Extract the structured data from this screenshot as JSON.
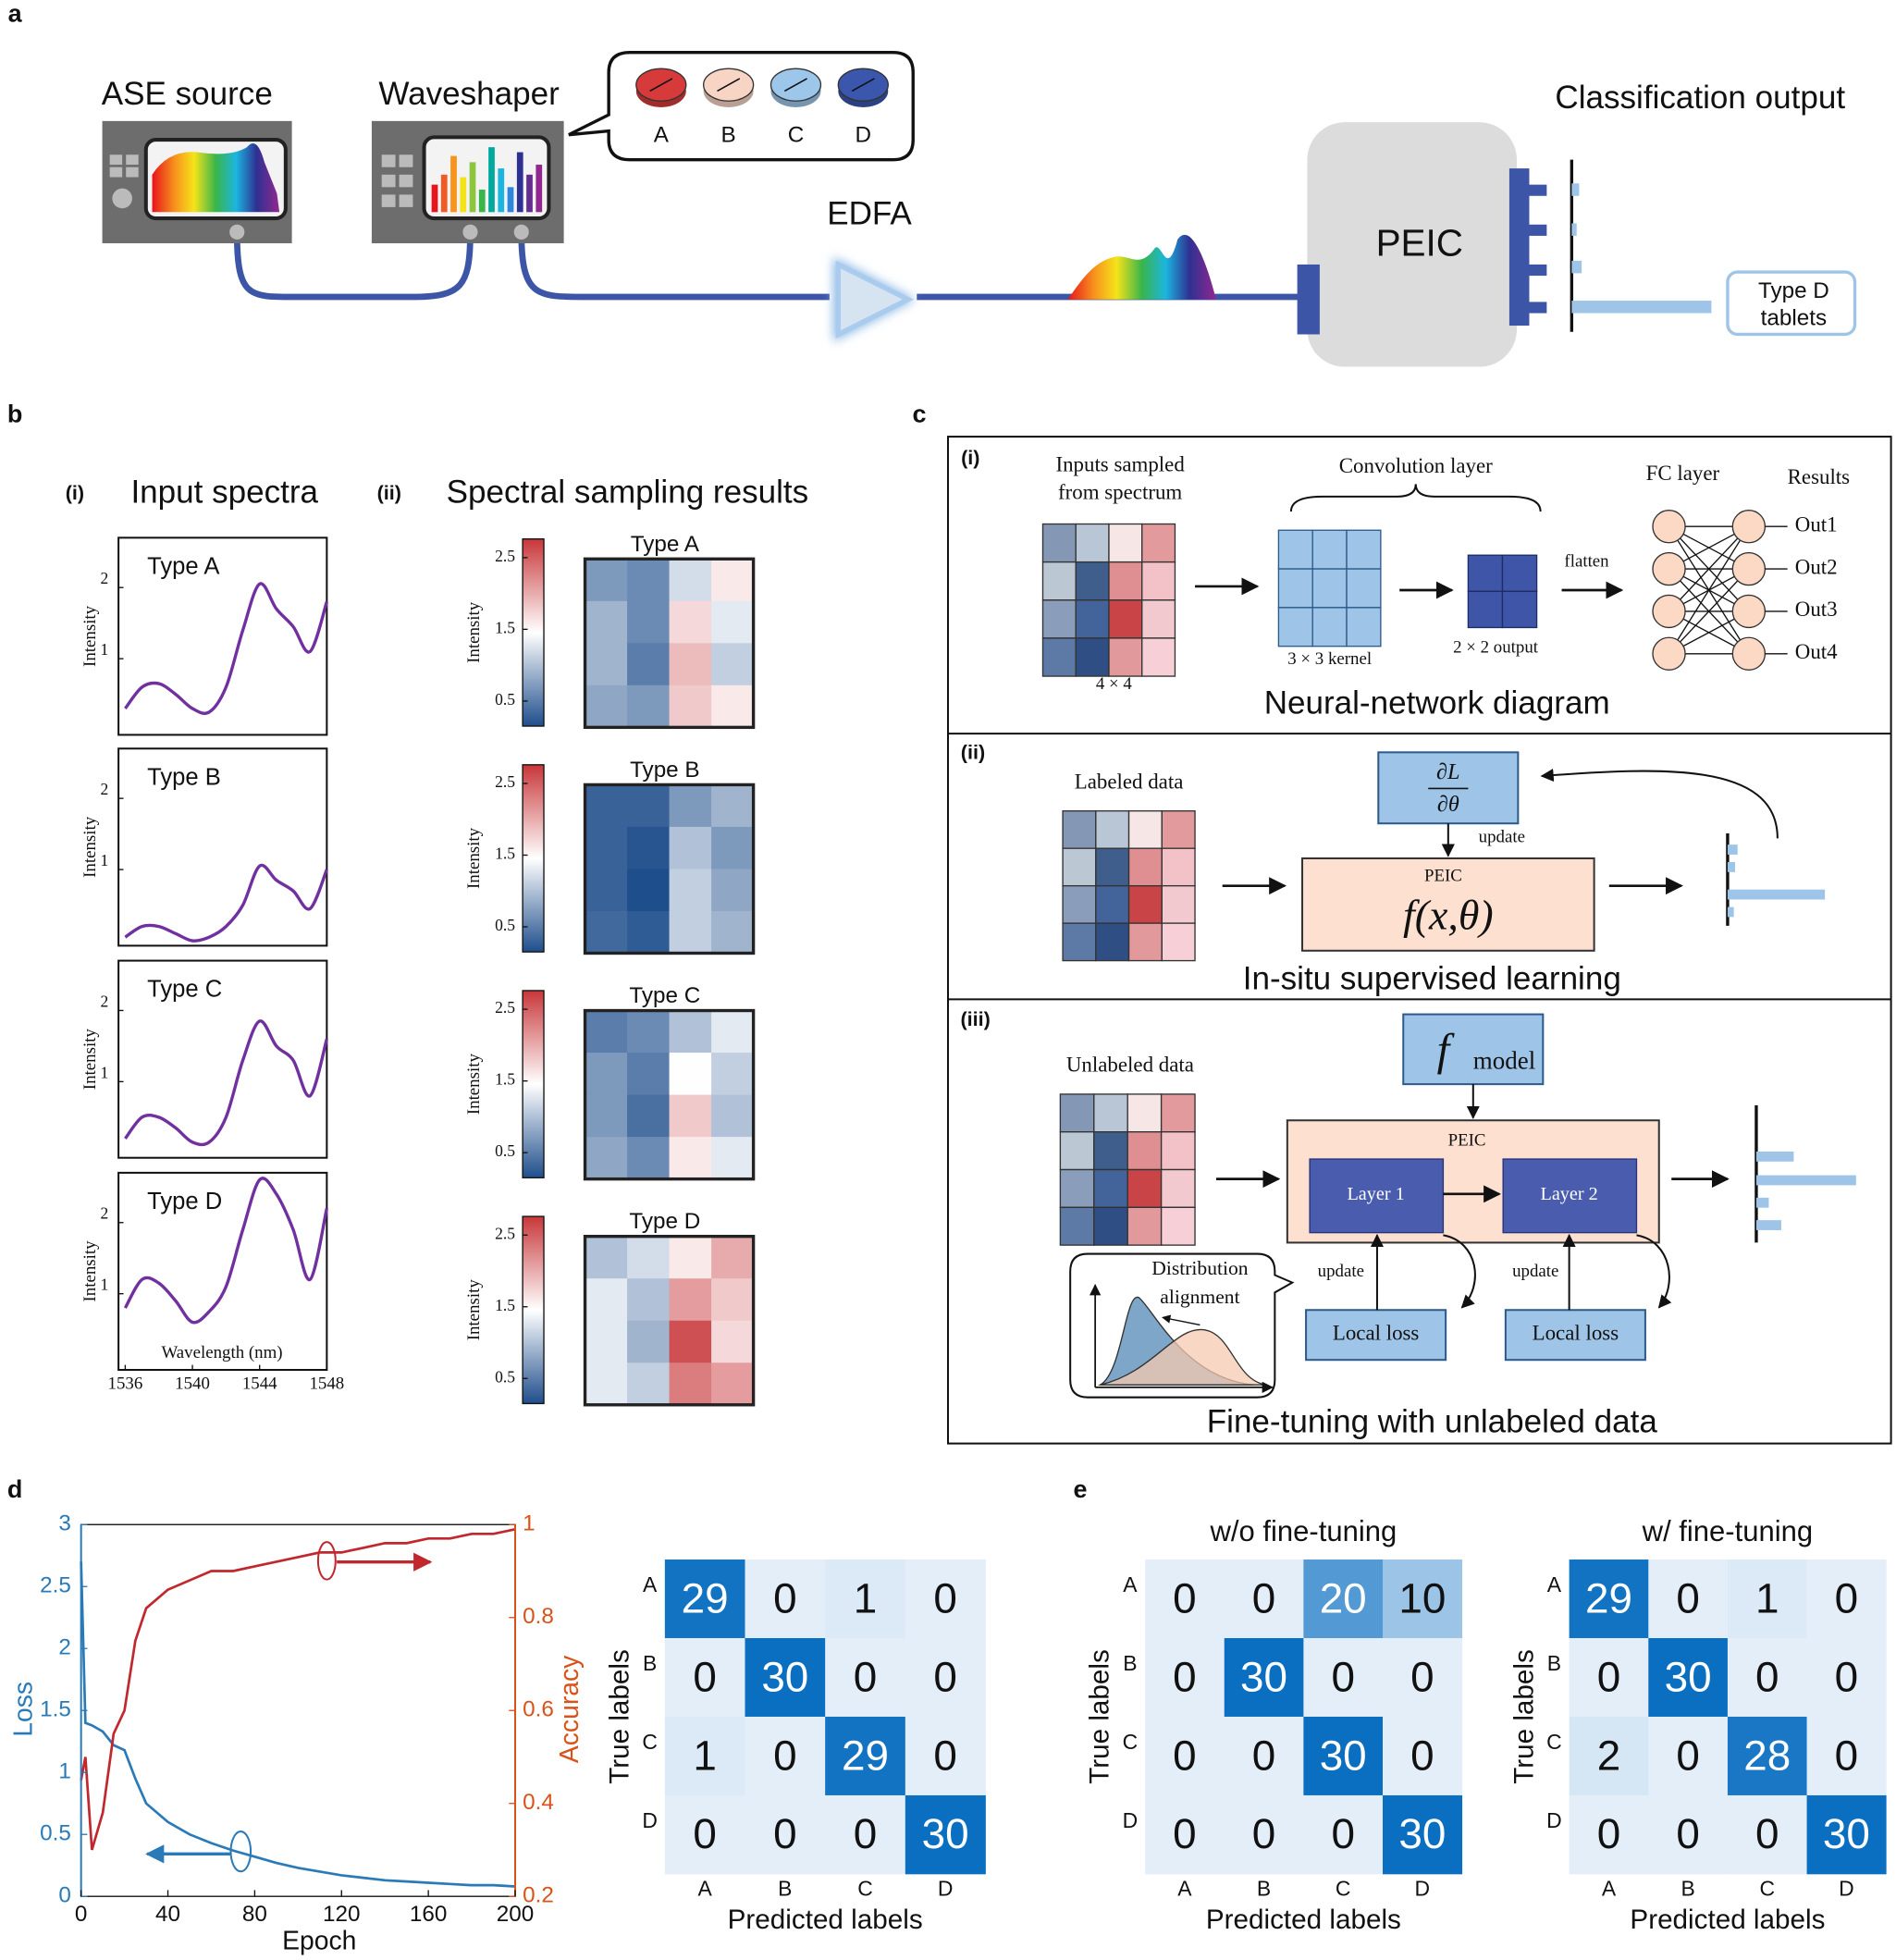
{
  "panel_a": {
    "label": "a",
    "source": "ASE source",
    "shaper": "Waveshaper",
    "tablets": [
      "A",
      "B",
      "C",
      "D"
    ],
    "amplifier": "EDFA",
    "chip": "PEIC",
    "output_title": "Classification output",
    "output": [
      "Type D",
      "tablets"
    ]
  },
  "panel_b": {
    "label": "b",
    "sub_i": "(i)",
    "title_i": "Input spectra",
    "sub_ii": "(ii)",
    "title_ii": "Spectral sampling results",
    "spectra": {
      "type": "line",
      "x": [
        1536,
        1537,
        1538,
        1539,
        1540,
        1541,
        1542,
        1543,
        1544,
        1545,
        1546,
        1547,
        1548
      ],
      "xlim": [
        1535.6,
        1548
      ],
      "xticks": [
        1536,
        1540,
        1544,
        1548
      ],
      "ylim": [
        -0.07,
        2.7
      ],
      "yticks": [
        1,
        2
      ],
      "x_label": "Wavelength (nm)",
      "y_label": "Intensity",
      "color": "#7030a0",
      "series": [
        {
          "name": "Type A",
          "values": [
            0.3,
            0.6,
            0.65,
            0.5,
            0.3,
            0.25,
            0.6,
            1.4,
            2.05,
            1.7,
            1.45,
            1.1,
            1.8
          ]
        },
        {
          "name": "Type B",
          "values": [
            0.05,
            0.2,
            0.2,
            0.1,
            0.0,
            0.05,
            0.2,
            0.5,
            1.05,
            0.85,
            0.7,
            0.45,
            1.0
          ]
        },
        {
          "name": "Type C",
          "values": [
            0.2,
            0.5,
            0.5,
            0.35,
            0.15,
            0.15,
            0.5,
            1.3,
            1.85,
            1.5,
            1.3,
            0.8,
            1.6
          ]
        },
        {
          "name": "Type D",
          "values": [
            0.8,
            1.2,
            1.15,
            0.9,
            0.6,
            0.75,
            1.1,
            1.9,
            2.6,
            2.4,
            1.9,
            1.2,
            2.2
          ]
        }
      ]
    },
    "heatmaps": {
      "type": "heatmap",
      "clim": [
        0.15,
        2.76
      ],
      "cticks": [
        0.5,
        1.5,
        2.5
      ],
      "c_label": "Intensity",
      "maps": [
        {
          "name": "Type A",
          "values": [
            [
              0.7,
              0.6,
              1.2,
              1.6
            ],
            [
              0.9,
              0.6,
              1.7,
              1.3
            ],
            [
              0.9,
              0.5,
              1.9,
              1.1
            ],
            [
              0.8,
              0.7,
              1.8,
              1.6
            ]
          ]
        },
        {
          "name": "Type B",
          "values": [
            [
              0.3,
              0.3,
              0.7,
              0.9
            ],
            [
              0.3,
              0.2,
              1.0,
              0.7
            ],
            [
              0.3,
              0.15,
              1.1,
              0.8
            ],
            [
              0.35,
              0.25,
              1.1,
              0.9
            ]
          ]
        },
        {
          "name": "Type C",
          "values": [
            [
              0.5,
              0.6,
              1.0,
              1.3
            ],
            [
              0.7,
              0.5,
              1.45,
              1.1
            ],
            [
              0.7,
              0.4,
              1.8,
              1.0
            ],
            [
              0.8,
              0.6,
              1.6,
              1.3
            ]
          ]
        },
        {
          "name": "Type D",
          "values": [
            [
              1.0,
              1.2,
              1.6,
              2.0
            ],
            [
              1.3,
              1.0,
              2.1,
              1.8
            ],
            [
              1.3,
              0.9,
              2.6,
              1.7
            ],
            [
              1.3,
              1.1,
              2.3,
              2.1
            ]
          ]
        }
      ]
    }
  },
  "panel_c": {
    "label": "c",
    "nn": {
      "tag": "(i)",
      "inputs": [
        "Inputs sampled",
        "from spectrum"
      ],
      "input_size": "4 × 4",
      "conv": "Convolution layer",
      "kernel": "3 × 3 kernel",
      "output": "2 × 2 output",
      "flatten": "flatten",
      "fc": "FC layer",
      "results": "Results",
      "outs": [
        "Out1",
        "Out2",
        "Out3",
        "Out4"
      ],
      "caption": "Neural-network diagram"
    },
    "supervised": {
      "tag": "(ii)",
      "input": "Labeled data",
      "gradient": {
        "num": "∂L",
        "den": "∂θ"
      },
      "update": "update",
      "chip": "PEIC",
      "function": "f(x,θ)",
      "caption": "In-situ supervised learning"
    },
    "finetune": {
      "tag": "(iii)",
      "input": "Unlabeled data",
      "model": {
        "f": "f",
        "sub": "model"
      },
      "chip": "PEIC",
      "layers": [
        "Layer 1",
        "Layer 2"
      ],
      "update": [
        "update",
        "update"
      ],
      "loss": [
        "Local loss",
        "Local loss"
      ],
      "bubble": [
        "Distribution",
        "alignment"
      ],
      "caption": "Fine-tuning with unlabeled data"
    }
  },
  "panel_d": {
    "label": "d",
    "training": {
      "type": "line",
      "x": [
        0,
        2,
        5,
        10,
        15,
        20,
        25,
        30,
        40,
        50,
        60,
        70,
        80,
        90,
        100,
        110,
        120,
        130,
        140,
        150,
        160,
        170,
        180,
        190,
        200
      ],
      "xlim": [
        0,
        200
      ],
      "xticks": [
        0,
        40,
        80,
        120,
        160,
        200
      ],
      "ylim": [
        0,
        3
      ],
      "yticks": [
        0,
        0.5,
        1,
        1.5,
        2,
        2.5,
        3
      ],
      "y2lim": [
        0.2,
        1
      ],
      "y2ticks": [
        0.2,
        0.4,
        0.6,
        0.8,
        1
      ],
      "x_label": "Epoch",
      "y_label": "Loss",
      "y2_label": "Accuracy",
      "series": [
        {
          "color": "#2a7ab8",
          "values": [
            2.7,
            1.4,
            1.38,
            1.33,
            1.22,
            1.18,
            0.95,
            0.75,
            0.6,
            0.5,
            0.43,
            0.37,
            0.32,
            0.27,
            0.23,
            0.2,
            0.17,
            0.15,
            0.13,
            0.12,
            0.11,
            0.1,
            0.09,
            0.09,
            0.08
          ]
        },
        {
          "color": "#c0282d",
          "axis": "y2",
          "values": [
            0.45,
            0.5,
            0.3,
            0.38,
            0.55,
            0.6,
            0.75,
            0.82,
            0.86,
            0.88,
            0.9,
            0.9,
            0.91,
            0.92,
            0.93,
            0.94,
            0.94,
            0.95,
            0.96,
            0.96,
            0.97,
            0.97,
            0.98,
            0.98,
            0.99
          ]
        }
      ]
    },
    "confusion": {
      "type": "heatmap",
      "categories": [
        "A",
        "B",
        "C",
        "D"
      ],
      "x_label": "Predicted labels",
      "y_label": "True labels",
      "values": [
        [
          29,
          0,
          1,
          0
        ],
        [
          0,
          30,
          0,
          0
        ],
        [
          1,
          0,
          29,
          0
        ],
        [
          0,
          0,
          0,
          30
        ]
      ]
    }
  },
  "panel_e": {
    "label": "e",
    "matrices": [
      {
        "type": "heatmap",
        "title": "w/o fine-tuning",
        "categories": [
          "A",
          "B",
          "C",
          "D"
        ],
        "x_label": "Predicted labels",
        "y_label": "True labels",
        "values": [
          [
            0,
            0,
            20,
            10
          ],
          [
            0,
            30,
            0,
            0
          ],
          [
            0,
            0,
            30,
            0
          ],
          [
            0,
            0,
            0,
            30
          ]
        ]
      },
      {
        "type": "heatmap",
        "title": "w/ fine-tuning",
        "categories": [
          "A",
          "B",
          "C",
          "D"
        ],
        "x_label": "Predicted labels",
        "y_label": "True labels",
        "values": [
          [
            29,
            0,
            1,
            0
          ],
          [
            0,
            30,
            0,
            0
          ],
          [
            2,
            0,
            28,
            0
          ],
          [
            0,
            0,
            0,
            30
          ]
        ]
      }
    ]
  }
}
